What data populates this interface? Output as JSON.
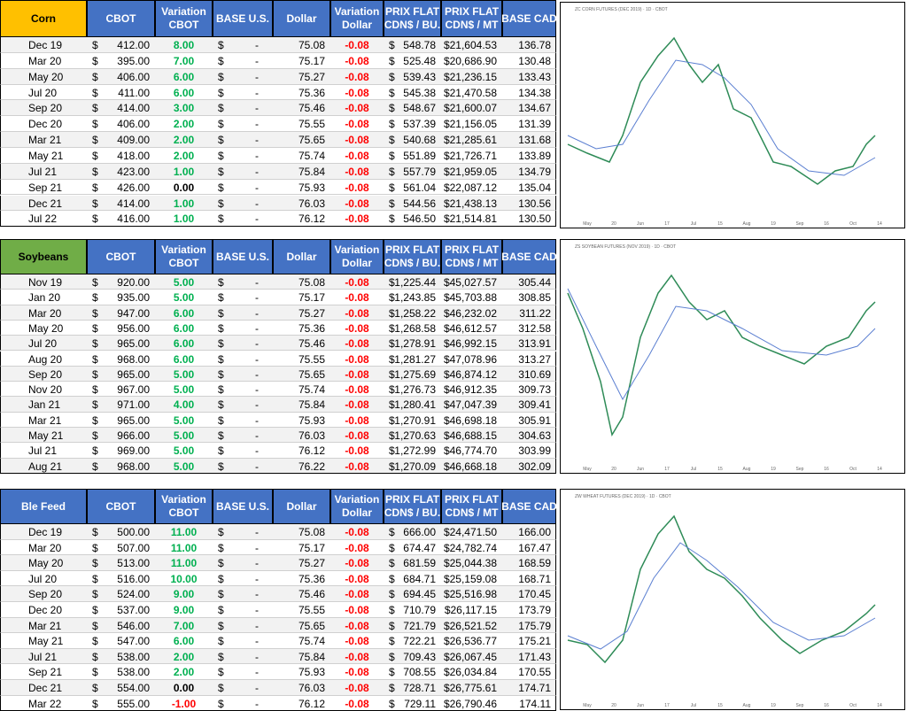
{
  "currency_symbol": "$",
  "tables": [
    {
      "header_color": "#FFC000",
      "header_text_color": "#000000",
      "header": [
        [
          "Corn"
        ],
        [
          "CBOT"
        ],
        [
          "Variation",
          "CBOT"
        ],
        [
          "BASE U.S."
        ],
        [
          "Dollar"
        ],
        [
          "Variation",
          "Dollar"
        ],
        [
          "PRIX FLAT",
          "CDN$ / BU."
        ],
        [
          "PRIX FLAT",
          "CDN$ / MT"
        ],
        [
          "BASE CAD"
        ]
      ],
      "rows": [
        [
          "Dec 19",
          "412.00",
          "8.00",
          "-",
          "75.08",
          "-0.08",
          "548.78",
          "$21,604.53",
          "136.78"
        ],
        [
          "Mar 20",
          "395.00",
          "7.00",
          "-",
          "75.17",
          "-0.08",
          "525.48",
          "$20,686.90",
          "130.48"
        ],
        [
          "May 20",
          "406.00",
          "6.00",
          "-",
          "75.27",
          "-0.08",
          "539.43",
          "$21,236.15",
          "133.43"
        ],
        [
          "Jul 20",
          "411.00",
          "6.00",
          "-",
          "75.36",
          "-0.08",
          "545.38",
          "$21,470.58",
          "134.38"
        ],
        [
          "Sep 20",
          "414.00",
          "3.00",
          "-",
          "75.46",
          "-0.08",
          "548.67",
          "$21,600.07",
          "134.67"
        ],
        [
          "Dec 20",
          "406.00",
          "2.00",
          "-",
          "75.55",
          "-0.08",
          "537.39",
          "$21,156.05",
          "131.39"
        ],
        [
          "Mar 21",
          "409.00",
          "2.00",
          "-",
          "75.65",
          "-0.08",
          "540.68",
          "$21,285.61",
          "131.68"
        ],
        [
          "May 21",
          "418.00",
          "2.00",
          "-",
          "75.74",
          "-0.08",
          "551.89",
          "$21,726.71",
          "133.89"
        ],
        [
          "Jul 21",
          "423.00",
          "1.00",
          "-",
          "75.84",
          "-0.08",
          "557.79",
          "$21,959.05",
          "134.79"
        ],
        [
          "Sep 21",
          "426.00",
          "0.00",
          "-",
          "75.93",
          "-0.08",
          "561.04",
          "$22,087.12",
          "135.04"
        ],
        [
          "Dec 21",
          "414.00",
          "1.00",
          "-",
          "76.03",
          "-0.08",
          "544.56",
          "$21,438.13",
          "130.56"
        ],
        [
          "Jul 22",
          "416.00",
          "1.00",
          "-",
          "76.12",
          "-0.08",
          "546.50",
          "$21,514.81",
          "130.50"
        ]
      ]
    },
    {
      "header_color": "#70AD47",
      "header_text_color": "#000000",
      "header": [
        [
          "Soybeans"
        ],
        [
          "CBOT"
        ],
        [
          "Variation",
          "CBOT"
        ],
        [
          "BASE U.S."
        ],
        [
          "Dollar"
        ],
        [
          "Variation",
          "Dollar"
        ],
        [
          "PRIX FLAT",
          "CDN$ / BU."
        ],
        [
          "PRIX FLAT",
          "CDN$ / MT"
        ],
        [
          "BASE CAD"
        ]
      ],
      "rows": [
        [
          "Nov 19",
          "920.00",
          "5.00",
          "-",
          "75.08",
          "-0.08",
          "1,225.44",
          "$45,027.57",
          "305.44"
        ],
        [
          "Jan 20",
          "935.00",
          "5.00",
          "-",
          "75.17",
          "-0.08",
          "1,243.85",
          "$45,703.88",
          "308.85"
        ],
        [
          "Mar 20",
          "947.00",
          "6.00",
          "-",
          "75.27",
          "-0.08",
          "1,258.22",
          "$46,232.02",
          "311.22"
        ],
        [
          "May 20",
          "956.00",
          "6.00",
          "-",
          "75.36",
          "-0.08",
          "1,268.58",
          "$46,612.57",
          "312.58"
        ],
        [
          "Jul 20",
          "965.00",
          "6.00",
          "-",
          "75.46",
          "-0.08",
          "1,278.91",
          "$46,992.15",
          "313.91"
        ],
        [
          "Aug 20",
          "968.00",
          "6.00",
          "-",
          "75.55",
          "-0.08",
          "1,281.27",
          "$47,078.96",
          "313.27"
        ],
        [
          "Sep 20",
          "965.00",
          "5.00",
          "-",
          "75.65",
          "-0.08",
          "1,275.69",
          "$46,874.12",
          "310.69"
        ],
        [
          "Nov 20",
          "967.00",
          "5.00",
          "-",
          "75.74",
          "-0.08",
          "1,276.73",
          "$46,912.35",
          "309.73"
        ],
        [
          "Jan 21",
          "971.00",
          "4.00",
          "-",
          "75.84",
          "-0.08",
          "1,280.41",
          "$47,047.39",
          "309.41"
        ],
        [
          "Mar 21",
          "965.00",
          "5.00",
          "-",
          "75.93",
          "-0.08",
          "1,270.91",
          "$46,698.18",
          "305.91"
        ],
        [
          "May 21",
          "966.00",
          "5.00",
          "-",
          "76.03",
          "-0.08",
          "1,270.63",
          "$46,688.15",
          "304.63"
        ],
        [
          "Jul 21",
          "969.00",
          "5.00",
          "-",
          "76.12",
          "-0.08",
          "1,272.99",
          "$46,774.70",
          "303.99"
        ],
        [
          "Aug 21",
          "968.00",
          "5.00",
          "-",
          "76.22",
          "-0.08",
          "1,270.09",
          "$46,668.18",
          "302.09"
        ]
      ]
    },
    {
      "header_color": "#4472C4",
      "header_text_color": "#FFFFFF",
      "header": [
        [
          "Ble Feed"
        ],
        [
          "CBOT"
        ],
        [
          "Variation",
          "CBOT"
        ],
        [
          "BASE U.S."
        ],
        [
          "Dollar"
        ],
        [
          "Variation",
          "Dollar"
        ],
        [
          "PRIX FLAT",
          "CDN$ / BU."
        ],
        [
          "PRIX FLAT",
          "CDN$ / MT"
        ],
        [
          "BASE CAD"
        ]
      ],
      "rows": [
        [
          "Dec 19",
          "500.00",
          "11.00",
          "-",
          "75.08",
          "-0.08",
          "666.00",
          "$24,471.50",
          "166.00"
        ],
        [
          "Mar 20",
          "507.00",
          "11.00",
          "-",
          "75.17",
          "-0.08",
          "674.47",
          "$24,782.74",
          "167.47"
        ],
        [
          "May 20",
          "513.00",
          "11.00",
          "-",
          "75.27",
          "-0.08",
          "681.59",
          "$25,044.38",
          "168.59"
        ],
        [
          "Jul 20",
          "516.00",
          "10.00",
          "-",
          "75.36",
          "-0.08",
          "684.71",
          "$25,159.08",
          "168.71"
        ],
        [
          "Sep 20",
          "524.00",
          "9.00",
          "-",
          "75.46",
          "-0.08",
          "694.45",
          "$25,516.98",
          "170.45"
        ],
        [
          "Dec 20",
          "537.00",
          "9.00",
          "-",
          "75.55",
          "-0.08",
          "710.79",
          "$26,117.15",
          "173.79"
        ],
        [
          "Mar 21",
          "546.00",
          "7.00",
          "-",
          "75.65",
          "-0.08",
          "721.79",
          "$26,521.52",
          "175.79"
        ],
        [
          "May 21",
          "547.00",
          "6.00",
          "-",
          "75.74",
          "-0.08",
          "722.21",
          "$26,536.77",
          "175.21"
        ],
        [
          "Jul 21",
          "538.00",
          "2.00",
          "-",
          "75.84",
          "-0.08",
          "709.43",
          "$26,067.45",
          "171.43"
        ],
        [
          "Sep 21",
          "538.00",
          "2.00",
          "-",
          "75.93",
          "-0.08",
          "708.55",
          "$26,034.84",
          "170.55"
        ],
        [
          "Dec 21",
          "554.00",
          "0.00",
          "-",
          "76.03",
          "-0.08",
          "728.71",
          "$26,775.61",
          "174.71"
        ],
        [
          "Mar 22",
          "555.00",
          "-1.00",
          "-",
          "76.12",
          "-0.08",
          "729.11",
          "$26,790.46",
          "174.11"
        ]
      ]
    }
  ],
  "charts": [
    {
      "title": "ZC CORN FUTURES (DEC 2019) · 1D · CBOT",
      "x_labels": [
        "May",
        "20",
        "Jun",
        "17",
        "Jul",
        "15",
        "Aug",
        "19",
        "Sep",
        "16",
        "Oct",
        "14"
      ]
    },
    {
      "title": "ZS SOYBEAN FUTURES (NOV 2019) · 1D · CBOT",
      "x_labels": [
        "May",
        "20",
        "Jun",
        "17",
        "Jul",
        "15",
        "Aug",
        "19",
        "Sep",
        "16",
        "Oct",
        "14"
      ]
    },
    {
      "title": "ZW WHEAT FUTURES (DEC 2019) · 1D · CBOT",
      "x_labels": [
        "May",
        "20",
        "Jun",
        "17",
        "Jul",
        "15",
        "Aug",
        "19",
        "Sep",
        "16",
        "Oct",
        "14"
      ]
    }
  ]
}
